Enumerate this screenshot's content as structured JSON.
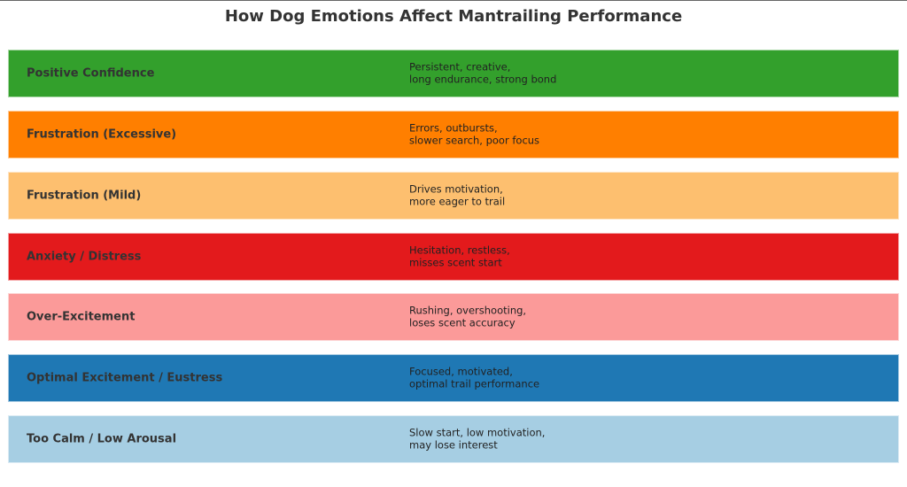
{
  "title": "How Dog Emotions Affect Mantrailing Performance",
  "rows": [
    {
      "label": "Positive Confidence",
      "line1": "Persistent, creative,",
      "line2": "long endurance, strong bond",
      "color": "#33a02c"
    },
    {
      "label": "Frustration (Excessive)",
      "line1": "Errors, outbursts,",
      "line2": "slower search, poor focus",
      "color": "#ff7f00"
    },
    {
      "label": "Frustration (Mild)",
      "line1": "Drives motivation,",
      "line2": "more eager to trail",
      "color": "#fdbf6f"
    },
    {
      "label": "Anxiety / Distress",
      "line1": "Hesitation, restless,",
      "line2": "misses scent start",
      "color": "#e31a1c"
    },
    {
      "label": "Over-Excitement",
      "line1": "Rushing, overshooting,",
      "line2": "loses scent accuracy",
      "color": "#fb9a99"
    },
    {
      "label": "Optimal Excitement / Eustress",
      "line1": "Focused, motivated,",
      "line2": "optimal trail performance",
      "color": "#1f78b4"
    },
    {
      "label": "Too Calm / Low Arousal",
      "line1": "Slow start, low motivation,",
      "line2": "may lose interest",
      "color": "#a6cee3"
    }
  ]
}
